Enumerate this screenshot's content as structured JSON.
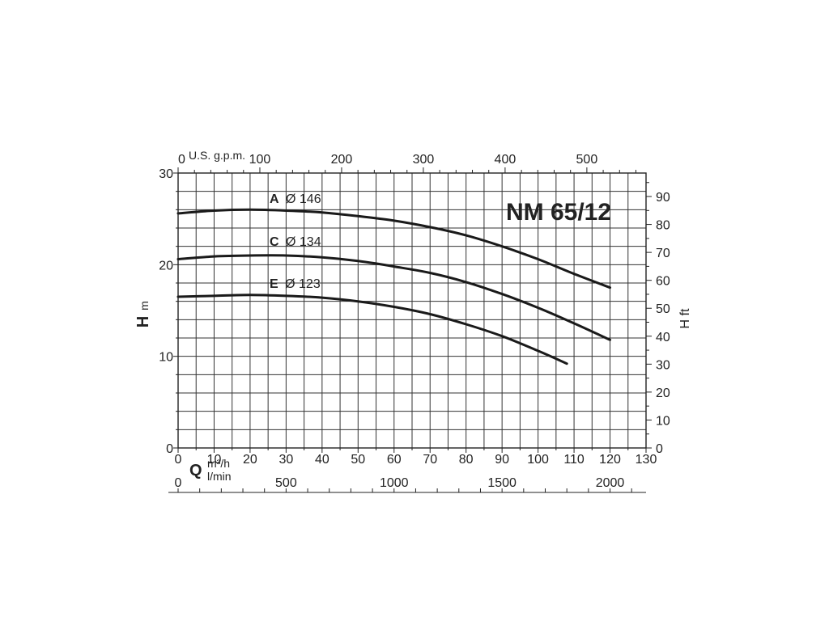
{
  "chart_data": {
    "type": "line",
    "title": "NM 65/12",
    "axes": {
      "x_bottom": {
        "unit_symbol": "Q",
        "unit_label": "m³/h",
        "range": [
          0,
          130
        ],
        "ticks": [
          0,
          10,
          20,
          30,
          40,
          50,
          60,
          70,
          80,
          90,
          100,
          110,
          120,
          130
        ]
      },
      "x_bottom2": {
        "unit_label": "l/min",
        "range": [
          0,
          2166.7
        ],
        "ticks": [
          0,
          500,
          1000,
          1500,
          2000
        ]
      },
      "x_top": {
        "unit_label": "U.S. g.p.m.",
        "range": [
          0,
          572.4
        ],
        "ticks": [
          0,
          100,
          200,
          300,
          400,
          500
        ]
      },
      "y_left": {
        "label_symbol": "H",
        "label_unit": "m",
        "range": [
          0,
          30
        ],
        "ticks": [
          0,
          10,
          20,
          30
        ]
      },
      "y_right": {
        "label": "H ft",
        "range": [
          0,
          98.4
        ],
        "ticks": [
          0,
          10,
          20,
          30,
          40,
          50,
          60,
          70,
          80,
          90
        ]
      }
    },
    "grid": true,
    "series": [
      {
        "letter": "A",
        "name": "Ø 146",
        "x": [
          0,
          10,
          20,
          30,
          40,
          50,
          60,
          70,
          80,
          90,
          100,
          110,
          120
        ],
        "y": [
          25.6,
          25.9,
          26.0,
          25.9,
          25.7,
          25.3,
          24.8,
          24.1,
          23.2,
          22.0,
          20.6,
          19.0,
          17.5
        ]
      },
      {
        "letter": "C",
        "name": "Ø 134",
        "x": [
          0,
          10,
          20,
          30,
          40,
          50,
          60,
          70,
          80,
          90,
          100,
          110,
          120
        ],
        "y": [
          20.6,
          20.9,
          21.0,
          21.0,
          20.8,
          20.4,
          19.8,
          19.1,
          18.1,
          16.8,
          15.3,
          13.6,
          11.8
        ]
      },
      {
        "letter": "E",
        "name": "Ø 123",
        "x": [
          0,
          10,
          20,
          30,
          40,
          50,
          60,
          70,
          80,
          90,
          100,
          108
        ],
        "y": [
          16.5,
          16.6,
          16.7,
          16.6,
          16.4,
          16.0,
          15.4,
          14.6,
          13.5,
          12.2,
          10.6,
          9.2
        ]
      }
    ]
  }
}
